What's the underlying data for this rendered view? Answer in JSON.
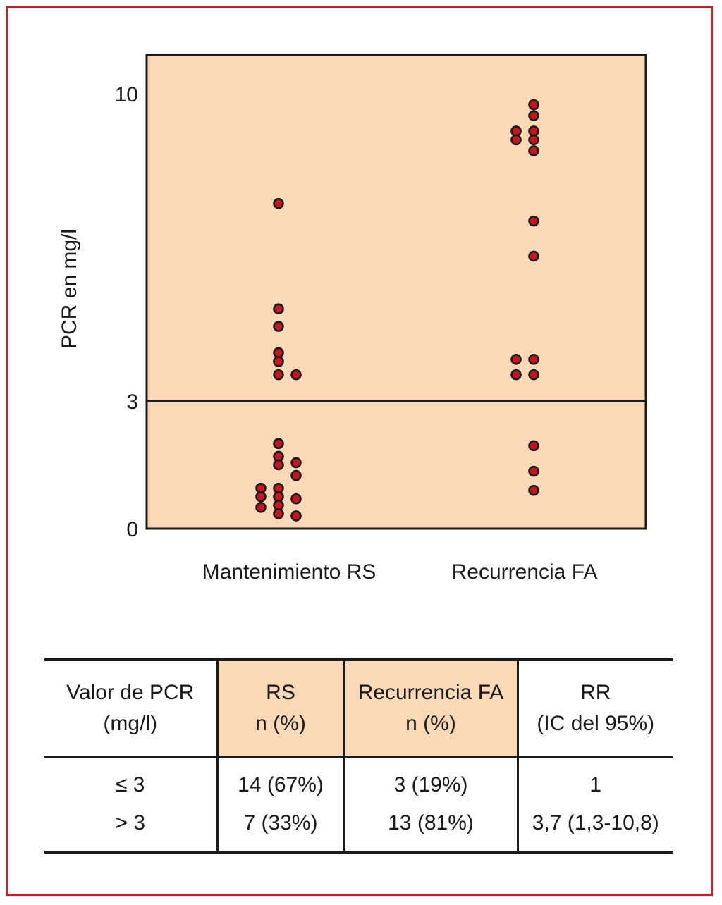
{
  "chart_data": {
    "type": "scatter",
    "title": "",
    "xlabel": "",
    "ylabel": "PCR en mg/l",
    "categories": [
      "Mantenimiento RS",
      "Recurrencia FA"
    ],
    "y_ticks": [
      {
        "value": 0,
        "label": "0"
      },
      {
        "value": 3,
        "label": "3"
      },
      {
        "value": 10,
        "label": "10"
      }
    ],
    "reference_line": 3,
    "plot_background": "#fcd9b6",
    "marker_color": "#c8141b",
    "series": [
      {
        "category": "Mantenimiento RS",
        "points": [
          {
            "col": 0,
            "y": 7.5
          },
          {
            "col": 0,
            "y": 5.1
          },
          {
            "col": 0,
            "y": 4.7
          },
          {
            "col": 0,
            "y": 4.1
          },
          {
            "col": 0,
            "y": 3.9
          },
          {
            "col": 0,
            "y": 3.6
          },
          {
            "col": 1,
            "y": 3.6
          },
          {
            "col": 0,
            "y": 2.0
          },
          {
            "col": 0,
            "y": 1.7
          },
          {
            "col": 0,
            "y": 1.5
          },
          {
            "col": 1,
            "y": 1.55
          },
          {
            "col": 1,
            "y": 1.25
          },
          {
            "col": -1,
            "y": 0.95
          },
          {
            "col": 0,
            "y": 0.95
          },
          {
            "col": -1,
            "y": 0.75
          },
          {
            "col": 0,
            "y": 0.75
          },
          {
            "col": 1,
            "y": 0.7
          },
          {
            "col": -1,
            "y": 0.5
          },
          {
            "col": 0,
            "y": 0.55
          },
          {
            "col": 0,
            "y": 0.35
          },
          {
            "col": 1,
            "y": 0.3
          }
        ]
      },
      {
        "category": "Recurrencia FA",
        "points": [
          {
            "col": 0,
            "y": 9.75
          },
          {
            "col": 0,
            "y": 9.5
          },
          {
            "col": -1,
            "y": 9.15
          },
          {
            "col": 0,
            "y": 9.15
          },
          {
            "col": -1,
            "y": 8.95
          },
          {
            "col": 0,
            "y": 8.95
          },
          {
            "col": 0,
            "y": 8.7
          },
          {
            "col": 0,
            "y": 7.1
          },
          {
            "col": 0,
            "y": 6.3
          },
          {
            "col": -1,
            "y": 3.95
          },
          {
            "col": 0,
            "y": 3.95
          },
          {
            "col": -1,
            "y": 3.6
          },
          {
            "col": 0,
            "y": 3.6
          },
          {
            "col": 0,
            "y": 1.95
          },
          {
            "col": 0,
            "y": 1.35
          },
          {
            "col": 0,
            "y": 0.9
          }
        ]
      }
    ]
  },
  "table": {
    "headers": [
      {
        "line1": "Valor de PCR",
        "line2": "(mg/l)"
      },
      {
        "line1": "RS",
        "line2": "n (%)"
      },
      {
        "line1": "Recurrencia FA",
        "line2": "n (%)"
      },
      {
        "line1": "RR",
        "line2": "(IC del 95%)"
      }
    ],
    "rows": [
      [
        "≤ 3",
        "14 (67%)",
        "3 (19%)",
        "1"
      ],
      [
        "> 3",
        "7 (33%)",
        "13 (81%)",
        "3,7 (1,3-10,8)"
      ]
    ]
  },
  "colors": {
    "frame": "#b22a2e",
    "shade": "#fcd9b6"
  }
}
